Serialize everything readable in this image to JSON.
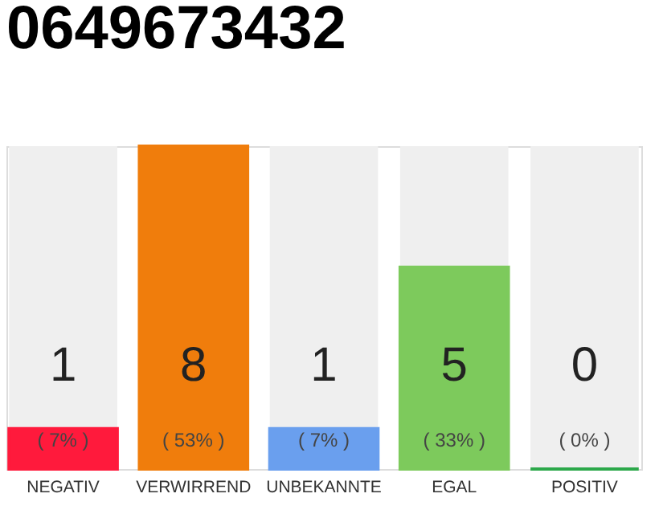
{
  "chart_data": {
    "type": "bar",
    "title": "0649673432",
    "categories": [
      "NEGATIV",
      "VERWIRREND",
      "UNBEKANNTE",
      "EGAL",
      "POSITIV"
    ],
    "values": [
      1,
      8,
      1,
      5,
      0
    ],
    "colors": [
      "#ff1a3c",
      "#f07d0c",
      "#6a9fee",
      "#7dca5c",
      "#2ca84a"
    ],
    "ylim": [
      0,
      8
    ],
    "data_labels": true,
    "tick_labels": "x",
    "grid": false,
    "annotations": [
      "( 7% )",
      "( 53% )",
      "( 7% )",
      "( 33% )",
      "( 0% )"
    ]
  }
}
